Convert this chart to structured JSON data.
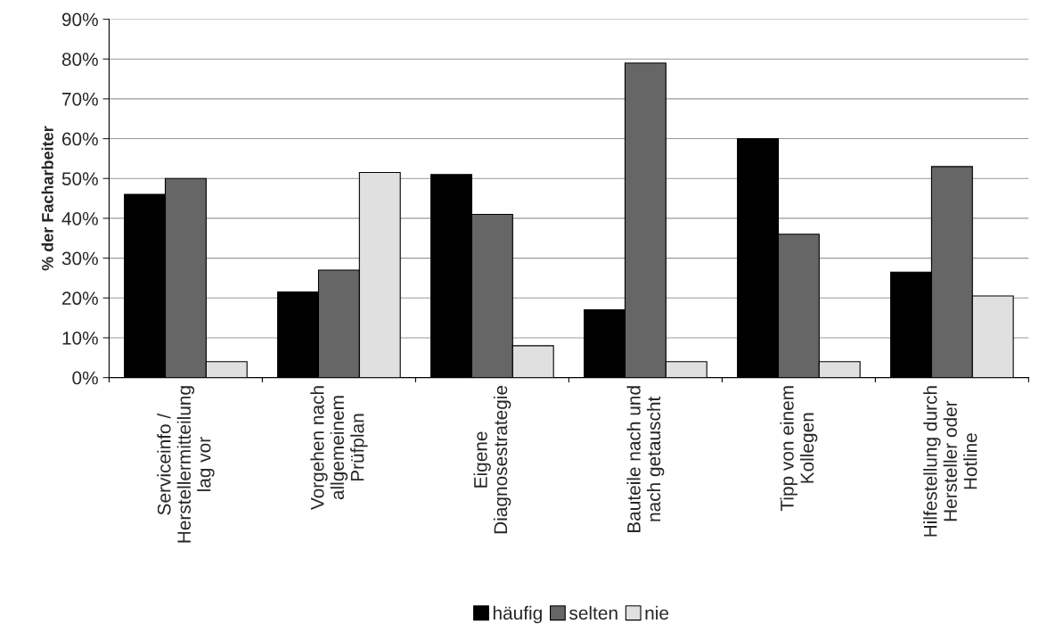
{
  "chart_data": {
    "type": "bar",
    "ylabel": "% der Facharbeiter",
    "categories": [
      "Serviceinfo /\nHerstellermitteilung\nlag vor",
      "Vorgehen nach\nallgemeinem\nPrüfplan",
      "Eigene\nDiagnosestrategie",
      "Bauteile nach und\nnach getauscht",
      "Tipp von einem\nKollegen",
      "Hilfestellung durch\nHersteller oder\nHotline"
    ],
    "series": [
      {
        "name": "häufig",
        "color": "#000000",
        "values": [
          46,
          21.5,
          51,
          17,
          60,
          26.5
        ]
      },
      {
        "name": "selten",
        "color": "#666666",
        "values": [
          50,
          27,
          41,
          79,
          36,
          53
        ]
      },
      {
        "name": "nie",
        "color": "#e0e0e0",
        "values": [
          4,
          51.5,
          8,
          4,
          4,
          20.5
        ]
      }
    ],
    "ylim": [
      0,
      90
    ],
    "yticks": [
      {
        "value": 0,
        "label": "0%"
      },
      {
        "value": 10,
        "label": "10%"
      },
      {
        "value": 20,
        "label": "20%"
      },
      {
        "value": 30,
        "label": "30%"
      },
      {
        "value": 40,
        "label": "40%"
      },
      {
        "value": 50,
        "label": "50%"
      },
      {
        "value": 60,
        "label": "60%"
      },
      {
        "value": 70,
        "label": "70%"
      },
      {
        "value": 80,
        "label": "80%"
      },
      {
        "value": 90,
        "label": "90%"
      }
    ],
    "grid": "y",
    "legend": "bottom"
  }
}
